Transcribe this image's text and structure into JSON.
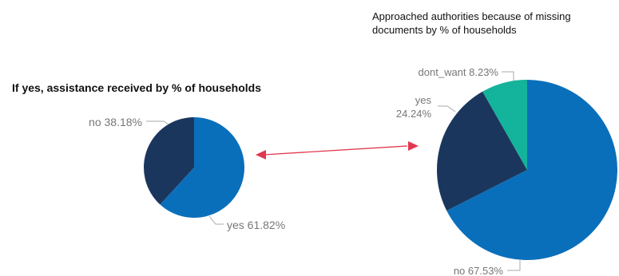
{
  "chart_data": [
    {
      "type": "pie",
      "title": "If yes, assistance received by % of households",
      "slices": [
        {
          "label": "yes 61.82%",
          "category": "yes",
          "value": 61.82,
          "color": "#0a6fba"
        },
        {
          "label": "no 38.18%",
          "category": "no",
          "value": 38.18,
          "color": "#1b365d"
        }
      ]
    },
    {
      "type": "pie",
      "title_lines": [
        "Approached authorities because of missing",
        "documents by % of households"
      ],
      "slices": [
        {
          "label_lines": [
            "no 67.53%"
          ],
          "category": "no",
          "value": 67.53,
          "color": "#0a6fba"
        },
        {
          "label_lines": [
            "yes",
            "24.24%"
          ],
          "category": "yes",
          "value": 24.24,
          "color": "#1b365d"
        },
        {
          "label_lines": [
            "dont_want 8.23%"
          ],
          "category": "dont_want",
          "value": 8.23,
          "color": "#14b39b"
        }
      ]
    }
  ],
  "connector": {
    "color": "#e0384f"
  }
}
